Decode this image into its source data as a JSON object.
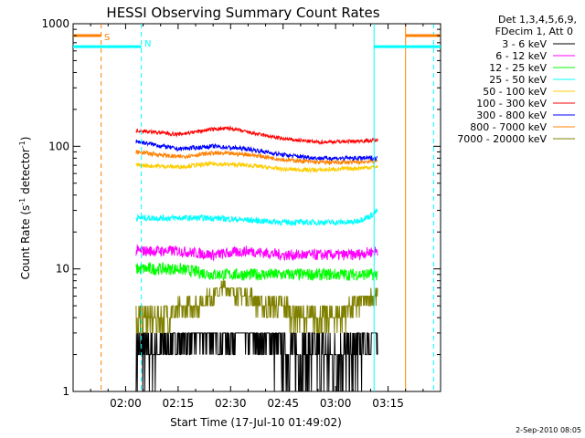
{
  "chart_data": {
    "type": "line",
    "title": "HESSI Observing Summary Count Rates",
    "xlabel": "Start Time (17-Jul-10 01:49:02)",
    "ylabel_main": "Count Rate (s",
    "ylabel_sup1": "-1",
    "ylabel_mid": " detector",
    "ylabel_sup2": "-1",
    "ylabel_end": ")",
    "y_scale": "log",
    "ylim": [
      1,
      1000
    ],
    "xlim_minutes": [
      105,
      210
    ],
    "x_ticks": [
      {
        "minutes": 120,
        "label": "02:00"
      },
      {
        "minutes": 135,
        "label": "02:15"
      },
      {
        "minutes": 150,
        "label": "02:30"
      },
      {
        "minutes": 165,
        "label": "02:45"
      },
      {
        "minutes": 180,
        "label": "03:00"
      },
      {
        "minutes": 195,
        "label": "03:15"
      }
    ],
    "y_ticks": [
      {
        "value": 1,
        "label": "1"
      },
      {
        "value": 10,
        "label": "10"
      },
      {
        "value": 100,
        "label": "100"
      },
      {
        "value": 1000,
        "label": "1000"
      }
    ],
    "legend_header": [
      "Det 1,3,4,5,6,9,",
      "FDecim 1, Att 0"
    ],
    "data_start_minutes": 123,
    "data_end_minutes": 192,
    "series": [
      {
        "name": "3 - 6 keV",
        "color": "#000000",
        "x": [
          123,
          140,
          155,
          170,
          185,
          192
        ],
        "y": [
          2,
          3,
          3,
          2,
          2,
          3
        ]
      },
      {
        "name": "6 - 12 keV",
        "color": "#ff00ff",
        "x": [
          123,
          135,
          145,
          155,
          165,
          175,
          185,
          192
        ],
        "y": [
          14,
          14,
          13,
          14,
          13,
          13,
          13,
          14
        ]
      },
      {
        "name": "12 - 25 keV",
        "color": "#00ff00",
        "x": [
          123,
          135,
          145,
          155,
          165,
          175,
          185,
          192
        ],
        "y": [
          10,
          10,
          9,
          9,
          9,
          9,
          9,
          9
        ]
      },
      {
        "name": "25 - 50 keV",
        "color": "#00ffff",
        "x": [
          123,
          135,
          145,
          155,
          165,
          175,
          185,
          190,
          192
        ],
        "y": [
          26,
          26,
          26,
          25,
          24,
          24,
          24,
          27,
          30
        ]
      },
      {
        "name": "50 - 100 keV",
        "color": "#ffcc00",
        "x": [
          123,
          135,
          145,
          155,
          165,
          175,
          185,
          192
        ],
        "y": [
          70,
          68,
          72,
          70,
          65,
          64,
          66,
          68
        ]
      },
      {
        "name": "100 - 300 keV",
        "color": "#ff0000",
        "x": [
          123,
          135,
          145,
          150,
          155,
          165,
          175,
          185,
          192
        ],
        "y": [
          135,
          125,
          138,
          140,
          130,
          115,
          108,
          110,
          112
        ]
      },
      {
        "name": "300 - 800 keV",
        "color": "#0000ff",
        "x": [
          123,
          135,
          145,
          155,
          165,
          175,
          185,
          192
        ],
        "y": [
          110,
          95,
          100,
          95,
          85,
          80,
          80,
          80
        ]
      },
      {
        "name": "800 - 7000 keV",
        "color": "#ff8000",
        "x": [
          123,
          135,
          145,
          155,
          165,
          175,
          185,
          192
        ],
        "y": [
          90,
          82,
          88,
          86,
          78,
          74,
          74,
          76
        ]
      },
      {
        "name": "7000 - 20000 keV",
        "color": "#808000",
        "x": [
          123,
          130,
          140,
          148,
          155,
          160,
          165,
          170,
          180,
          185,
          192
        ],
        "y": [
          4,
          4,
          5,
          7,
          6,
          5,
          5,
          4,
          4,
          5,
          6
        ]
      }
    ],
    "annotations": [
      {
        "label": "S",
        "color": "#ff8000"
      },
      {
        "label": "N",
        "color": "#00ffff"
      }
    ],
    "event_lines": [
      {
        "minutes": 113,
        "color": "#ff8000",
        "style": "dashed"
      },
      {
        "minutes": 124.5,
        "color": "#00ffff",
        "style": "dashed"
      },
      {
        "minutes": 191,
        "color": "#00ffff",
        "style": "solid"
      },
      {
        "minutes": 200,
        "color": "#ff8000",
        "style": "solid"
      },
      {
        "minutes": 208,
        "color": "#00ffff",
        "style": "dashed"
      }
    ],
    "flag_bars": [
      {
        "from": 105,
        "to": 113,
        "value": 800,
        "color": "#ff8000"
      },
      {
        "from": 105,
        "to": 124.5,
        "value": 650,
        "color": "#00ffff"
      },
      {
        "from": 191,
        "to": 210,
        "value": 650,
        "color": "#00ffff"
      },
      {
        "from": 200,
        "to": 210,
        "value": 800,
        "color": "#ff8000"
      }
    ],
    "footer_date": "2-Sep-2010 08:05"
  }
}
